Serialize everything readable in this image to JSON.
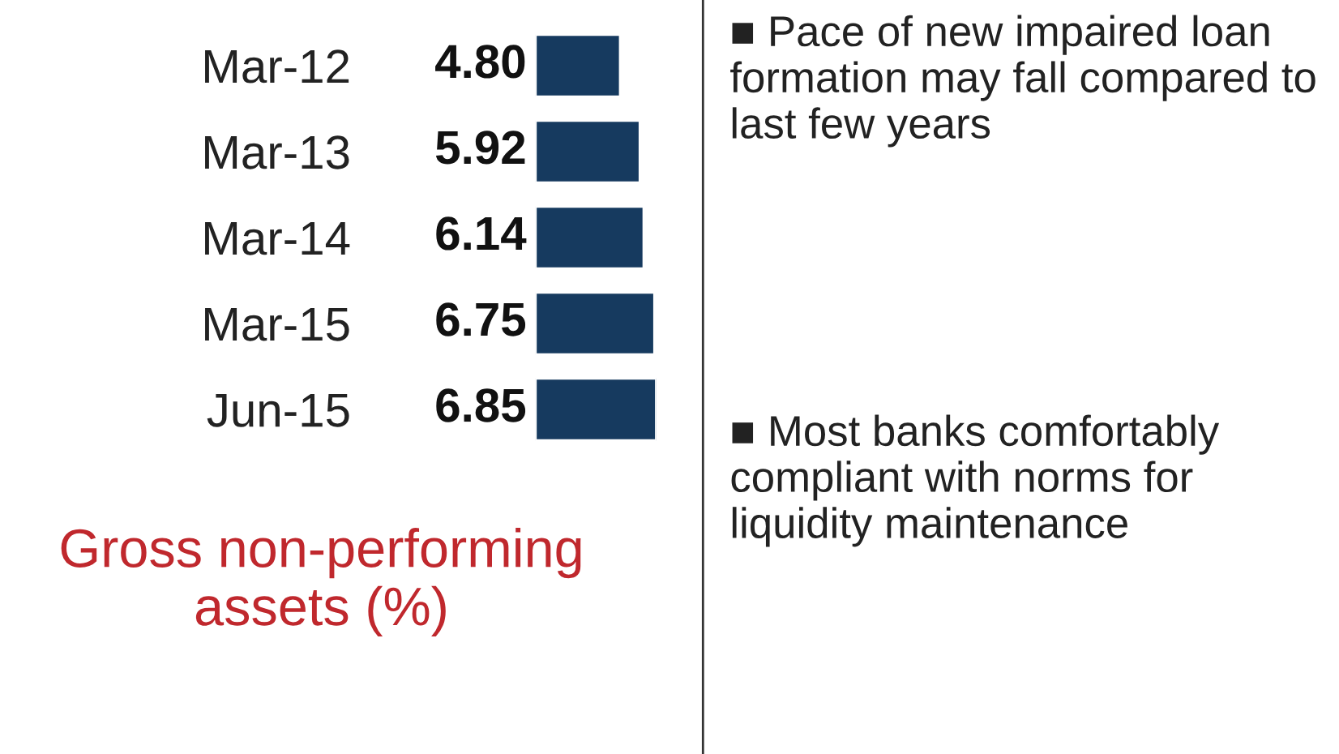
{
  "chart_data": {
    "type": "bar",
    "orientation": "horizontal",
    "title": "Gross non-performing assets (%)",
    "categories": [
      "Mar-12",
      "Mar-13",
      "Mar-14",
      "Mar-15",
      "Jun-15"
    ],
    "values": [
      4.8,
      5.92,
      6.14,
      6.75,
      6.85
    ],
    "color": "#163a5f",
    "value_labels": [
      "4.80",
      "5.92",
      "6.14",
      "6.75",
      "6.85"
    ],
    "tick_labels": "y",
    "grid": false,
    "legend": false,
    "annotations": [
      "■ Pace of new impaired loan formation may fall compared to last few years",
      "■ Most banks comfortably compliant with norms for liquidity maintenance"
    ]
  }
}
